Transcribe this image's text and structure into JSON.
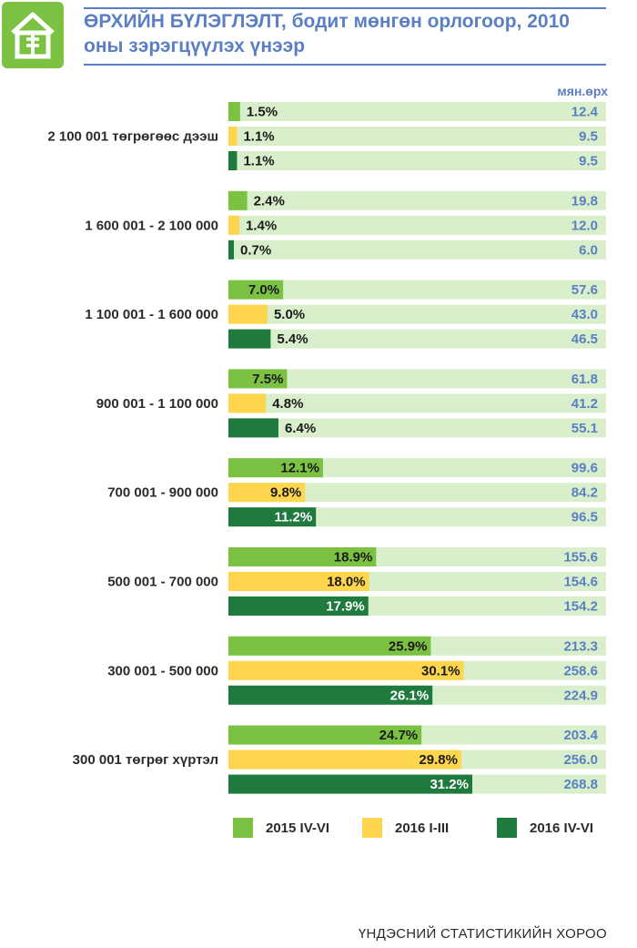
{
  "header": {
    "title_line1": "ӨРХИЙН БҮЛЭГЛЭЛТ, бодит мөнгөн орлогоор, 2010",
    "title_line2": "оны зэрэгцүүлэх үнээр",
    "unit": "мян.өрх"
  },
  "colors": {
    "track": "#d9efcb",
    "accent": "#5b7fc4",
    "series": [
      "#7bc142",
      "#fdd64e",
      "#1f7a3e"
    ]
  },
  "chart_data": {
    "type": "bar",
    "orientation": "horizontal",
    "title": "ӨРХИЙН БҮЛЭГЛЭЛТ, бодит мөнгөн орлогоор, 2010 оны зэрэгцүүлэх үнээр",
    "categories": [
      "2 100 001 төгрөгөөс дээш",
      "1 600 001 - 2 100 000",
      "1 100 001 - 1 600 000",
      "900 001 - 1 100 000",
      "700 001 - 900 000",
      "500 001 - 700 000",
      "300 001 - 500 000",
      "300 001 төгрөг хүртэл"
    ],
    "series": [
      {
        "name": "2015 IV-VI",
        "percent": [
          1.5,
          2.4,
          7.0,
          7.5,
          12.1,
          18.9,
          25.9,
          24.7
        ],
        "percent_labels": [
          "1.5%",
          "2.4%",
          "7.0%",
          "7.5%",
          "12.1%",
          "18.9%",
          "25.9%",
          "24.7%"
        ],
        "values": [
          "12.4",
          "19.8",
          "57.6",
          "61.8",
          "99.6",
          "155.6",
          "213.3",
          "203.4"
        ]
      },
      {
        "name": "2016 I-III",
        "percent": [
          1.1,
          1.4,
          5.0,
          4.8,
          9.8,
          18.0,
          30.1,
          29.8
        ],
        "percent_labels": [
          "1.1%",
          "1.4%",
          "5.0%",
          "4.8%",
          "9.8%",
          "18.0%",
          "30.1%",
          "29.8%"
        ],
        "values": [
          "9.5",
          "12.0",
          "43.0",
          "41.2",
          "84.2",
          "154.6",
          "258.6",
          "256.0"
        ]
      },
      {
        "name": "2016 IV-VI",
        "percent": [
          1.1,
          0.7,
          5.4,
          6.4,
          11.2,
          17.9,
          26.1,
          31.2
        ],
        "percent_labels": [
          "1.1%",
          "0.7%",
          "5.4%",
          "6.4%",
          "11.2%",
          "17.9%",
          "26.1%",
          "31.2%"
        ],
        "values": [
          "9.5",
          "6.0",
          "46.5",
          "55.1",
          "96.5",
          "154.2",
          "224.9",
          "268.8"
        ]
      }
    ],
    "unit": "мян.өрх",
    "legend": "bottom",
    "grid": false
  },
  "legend": [
    {
      "label": "2015 IV-VI"
    },
    {
      "label": "2016 I-III"
    },
    {
      "label": "2016 IV-VI"
    }
  ],
  "footer": "ҮНДЭСНИЙ СТАТИСТИКИЙН ХОРОО"
}
